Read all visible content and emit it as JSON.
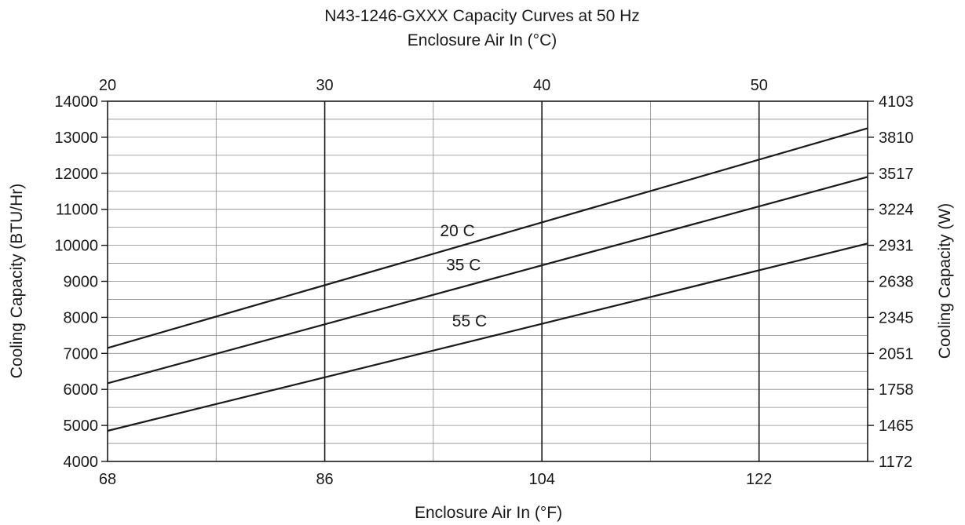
{
  "chart_data": {
    "type": "line",
    "title": "N43-1246-GXXX Capacity Curves at 50 Hz",
    "x_top_label": "Enclosure Air In (°C)",
    "xlabel": "Enclosure Air In (°F)",
    "ylabel": "Cooling Capacity (BTU/Hr)",
    "y2label": "Cooling Capacity (W)",
    "xlim": [
      68,
      131
    ],
    "ylim": [
      4000,
      14000
    ],
    "x_ticks": [
      "68",
      "86",
      "104",
      "122"
    ],
    "x_top_ticks": [
      "20",
      "30",
      "40",
      "50"
    ],
    "y_ticks": [
      "4000",
      "5000",
      "6000",
      "7000",
      "8000",
      "9000",
      "10000",
      "11000",
      "12000",
      "13000",
      "14000"
    ],
    "y2_ticks": [
      "1172",
      "1465",
      "1758",
      "2051",
      "2345",
      "2638",
      "2931",
      "3224",
      "3517",
      "3810",
      "4103"
    ],
    "grid": true,
    "series": [
      {
        "name": "20 C",
        "x": [
          68,
          131
        ],
        "values": [
          7150,
          13250
        ]
      },
      {
        "name": "35 C",
        "x": [
          68,
          131
        ],
        "values": [
          6170,
          11900
        ]
      },
      {
        "name": "55 C",
        "x": [
          68,
          131
        ],
        "values": [
          4850,
          10050
        ]
      }
    ],
    "series_labels": [
      {
        "text": "20 C",
        "x": 97,
        "y": 10250
      },
      {
        "text": "35 C",
        "x": 97.5,
        "y": 9300
      },
      {
        "text": "55 C",
        "x": 98,
        "y": 7750
      }
    ]
  }
}
